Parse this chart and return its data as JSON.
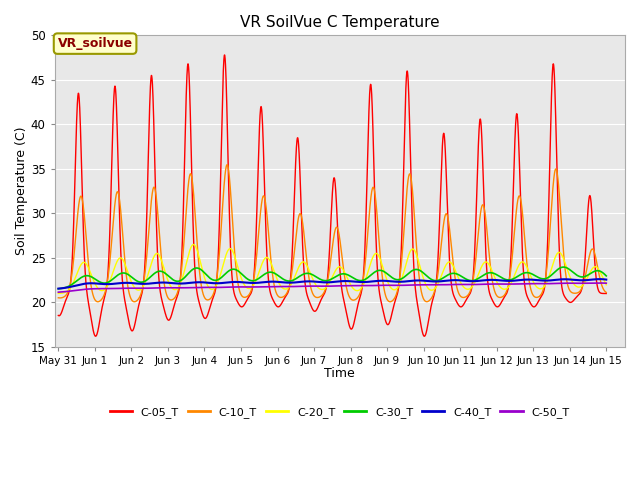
{
  "title": "VR SoilVue C Temperature",
  "xlabel": "Time",
  "ylabel": "Soil Temperature (C)",
  "ylim": [
    15,
    50
  ],
  "xlim_start": -0.1,
  "xlim_end": 15.5,
  "xtick_positions": [
    0,
    1,
    2,
    3,
    4,
    5,
    6,
    7,
    8,
    9,
    10,
    11,
    12,
    13,
    14,
    15
  ],
  "xtick_labels": [
    "May 31",
    "Jun 1",
    "Jun 2",
    "Jun 3",
    "Jun 4",
    "Jun 5",
    "Jun 6",
    "Jun 7",
    "Jun 8",
    "Jun 9",
    "Jun 10",
    "Jun 11",
    "Jun 12",
    "Jun 13",
    "Jun 14",
    "Jun 15"
  ],
  "ytick_positions": [
    15,
    20,
    25,
    30,
    35,
    40,
    45,
    50
  ],
  "annotation_text": "VR_soilvue",
  "bg_color": "#ffffff",
  "plot_bg_color": "#e8e8e8",
  "grid_color": "#ffffff",
  "series": [
    {
      "name": "C-05_T",
      "color": "#ff0000"
    },
    {
      "name": "C-10_T",
      "color": "#ff8800"
    },
    {
      "name": "C-20_T",
      "color": "#ffff00"
    },
    {
      "name": "C-30_T",
      "color": "#00cc00"
    },
    {
      "name": "C-40_T",
      "color": "#0000cc"
    },
    {
      "name": "C-50_T",
      "color": "#9900cc"
    }
  ]
}
